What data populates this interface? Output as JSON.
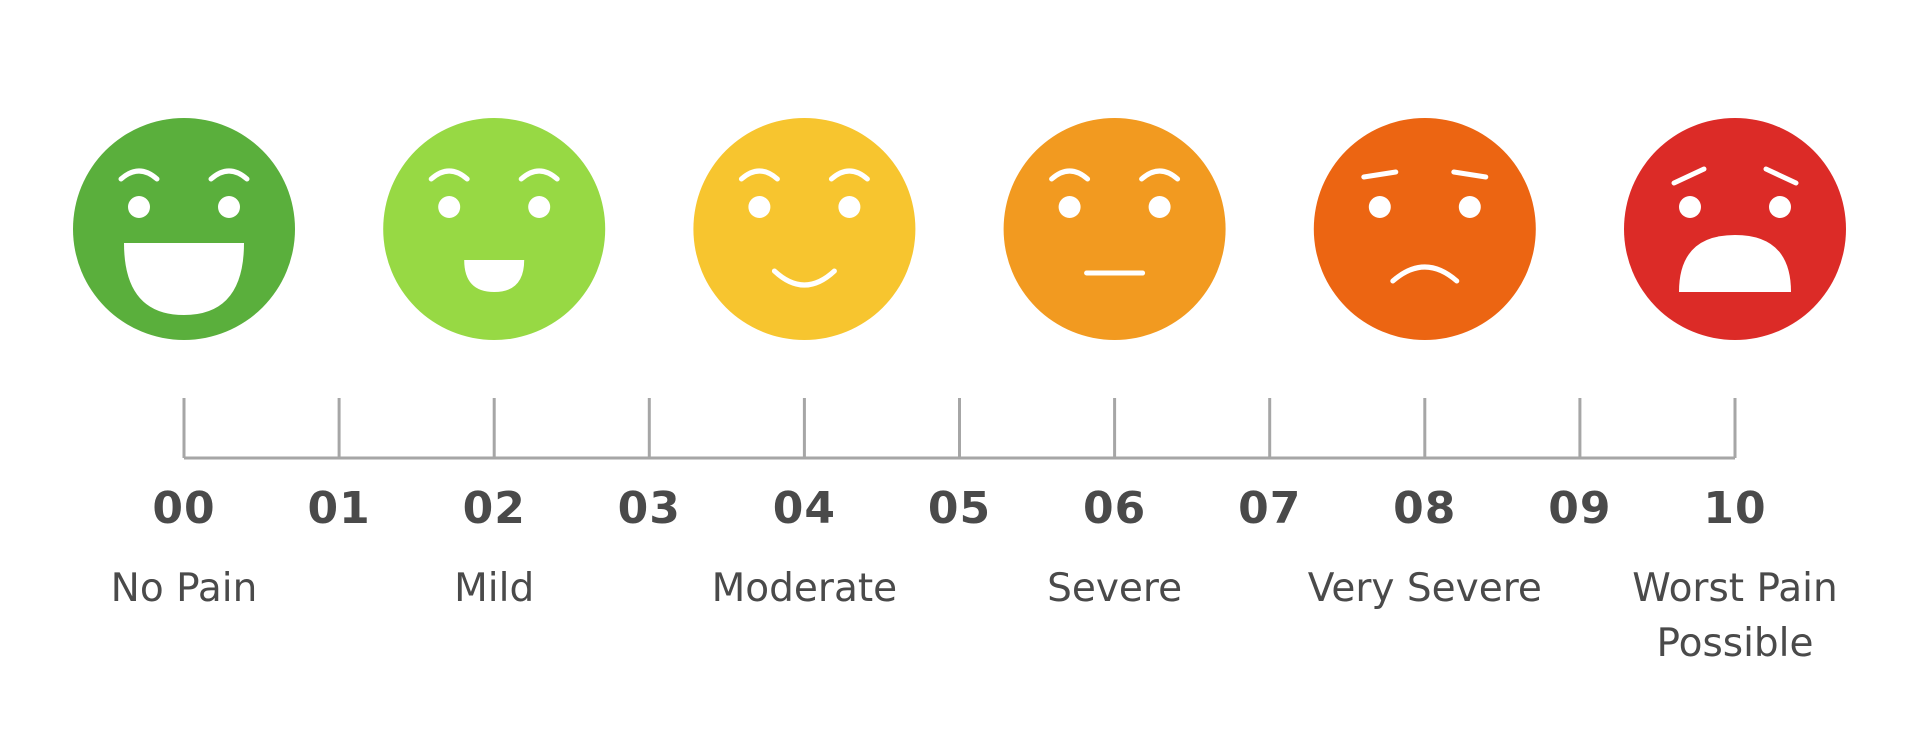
{
  "scale": {
    "ticks": [
      "00",
      "01",
      "02",
      "03",
      "04",
      "05",
      "06",
      "07",
      "08",
      "09",
      "10"
    ],
    "levels": [
      {
        "value": 0,
        "label_lines": [
          "No Pain"
        ],
        "face": "big-smile",
        "icon": "grinning-face-icon",
        "color": "#5aaf3c"
      },
      {
        "value": 2,
        "label_lines": [
          "Mild"
        ],
        "face": "smile",
        "icon": "smiling-face-icon",
        "color": "#97d944"
      },
      {
        "value": 4,
        "label_lines": [
          "Moderate"
        ],
        "face": "slight",
        "icon": "slight-smile-face-icon",
        "color": "#f7c52f"
      },
      {
        "value": 6,
        "label_lines": [
          "Severe"
        ],
        "face": "neutral",
        "icon": "neutral-face-icon",
        "color": "#f29a20"
      },
      {
        "value": 8,
        "label_lines": [
          "Very Severe"
        ],
        "face": "frown",
        "icon": "frowning-face-icon",
        "color": "#ec6512"
      },
      {
        "value": 10,
        "label_lines": [
          "Worst Pain",
          "Possible"
        ],
        "face": "anguish",
        "icon": "anguished-face-icon",
        "color": "#dc2b27"
      }
    ],
    "axis_color": "#a6a6a6",
    "text_color": "#4a4a4a"
  }
}
